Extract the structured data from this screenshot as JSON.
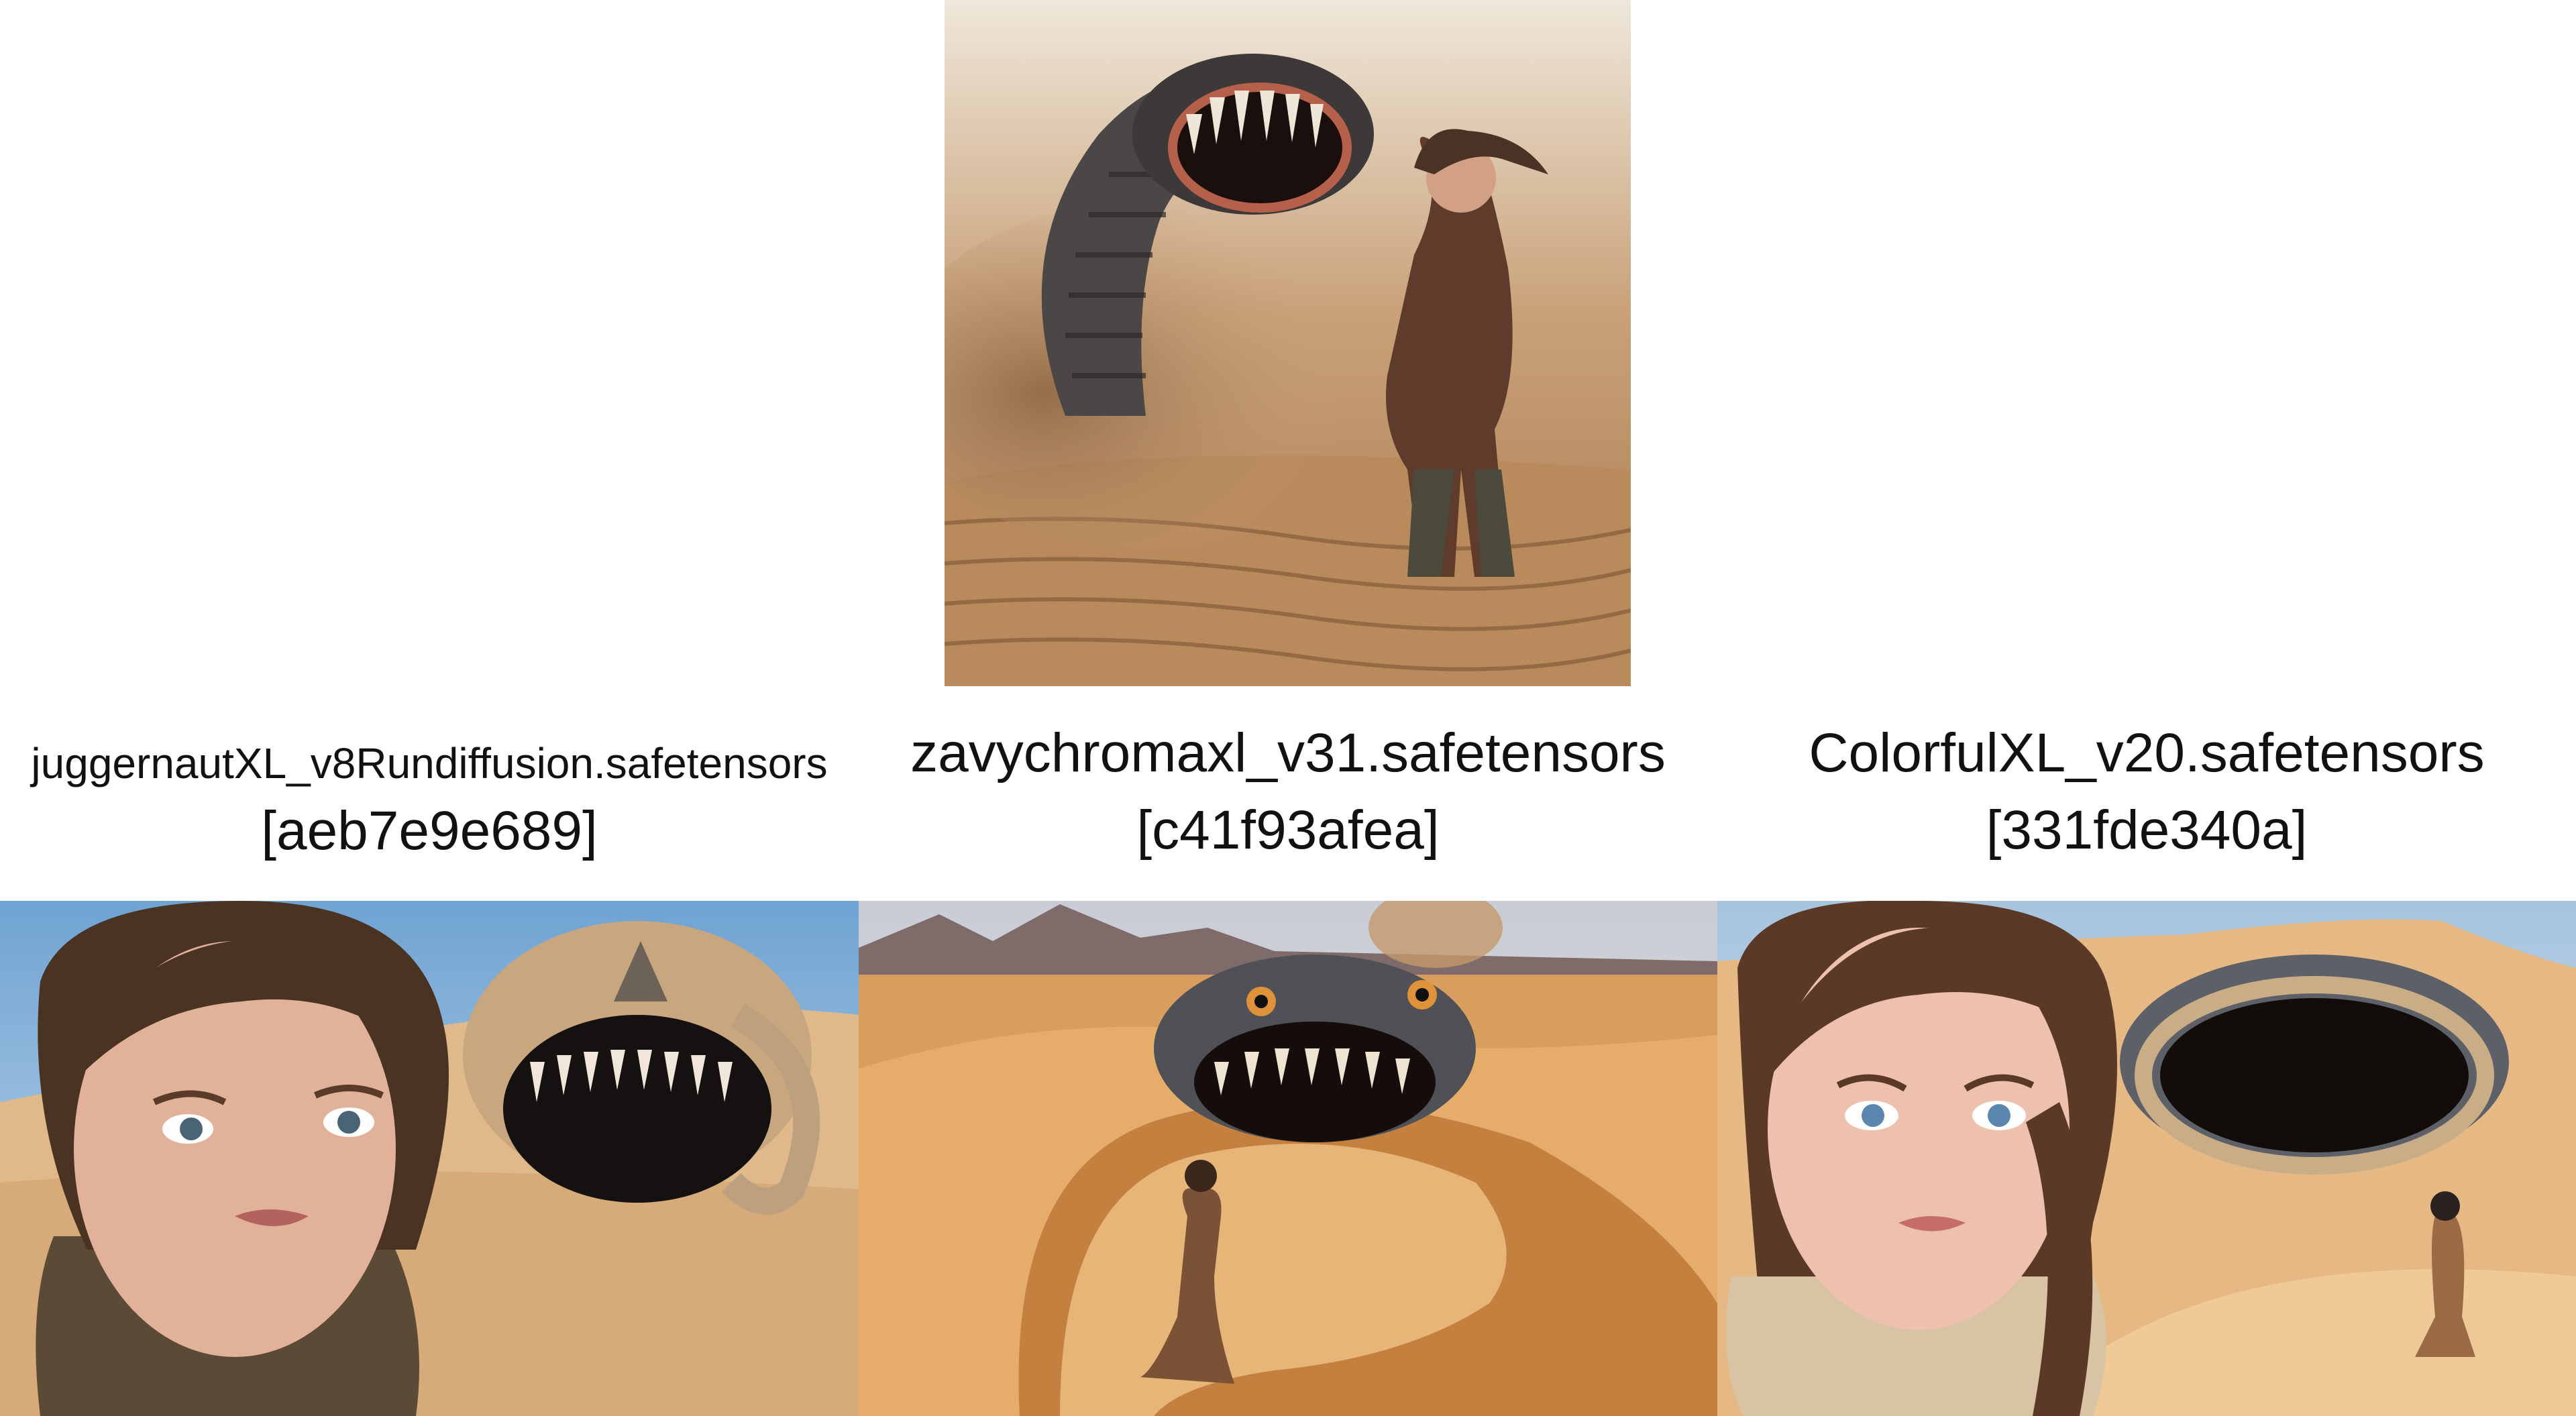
{
  "grid": {
    "top_image": {
      "subject": "giant sand worm chasing a running woman in a desert"
    },
    "columns": [
      {
        "model": "juggernautXL_v8Rundiffusion.safetensors",
        "hash": "[aeb7e9e689]",
        "subject": "close-up of a worried young woman with a sand worm behind her"
      },
      {
        "model": "zavychromaxl_v31.safetensors",
        "hash": "[c41f93afea]",
        "subject": "woman standing on dunes facing a giant sand worm"
      },
      {
        "model": "ColorfulXL_v20.safetensors",
        "hash": "[331fde340a]",
        "subject": "young woman with braid in front of a giant open-mouthed sand worm"
      }
    ]
  },
  "colors": {
    "sand": "#d9a56b",
    "sky": "#8fb6d8",
    "worm": "#5b5a5c",
    "background": "#ffffff"
  }
}
